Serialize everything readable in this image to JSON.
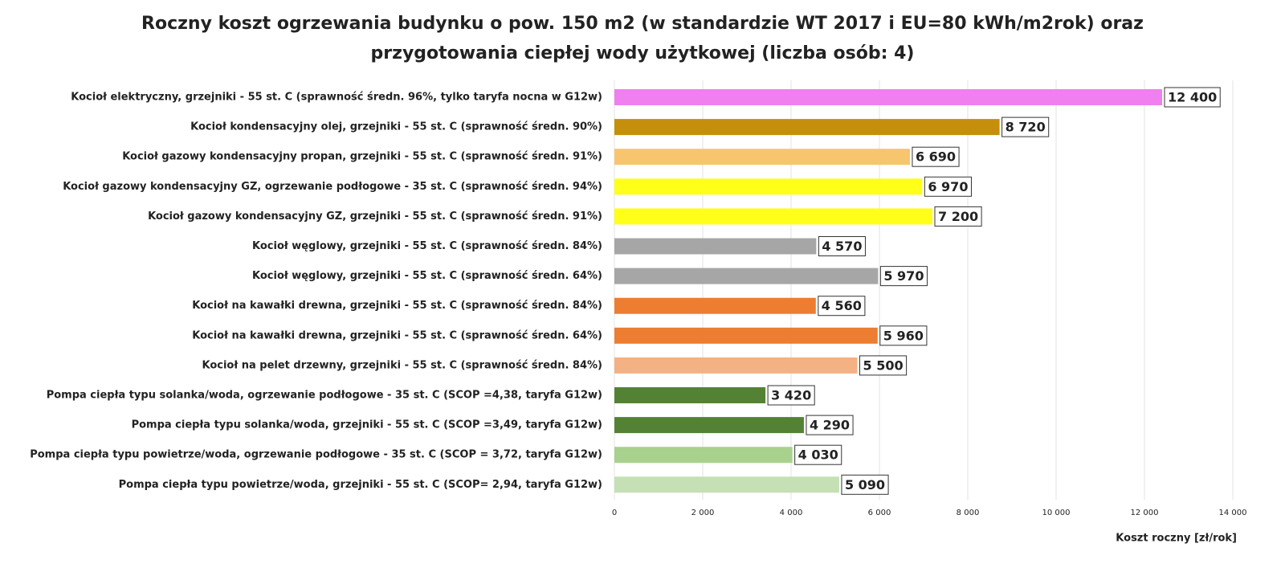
{
  "chart_data": {
    "type": "bar",
    "orientation": "horizontal",
    "title": [
      "Roczny koszt ogrzewania budynku  o pow. 150 m2 (w standardzie WT 2017 i EU=80 kWh/m2rok) oraz",
      "przygotowania ciepłej wody użytkowej (liczba osób: 4)"
    ],
    "x_label": "Koszt roczny [zł/rok]",
    "categories": [
      "Kocioł  elektryczny,  grzejniki - 55 st. C  (sprawność średn. 96%, tylko taryfa nocna w G12w)",
      "Kocioł  kondensacyjny olej,  grzejniki - 55 st. C (sprawność średn. 90%)",
      "Kocioł gazowy kondensacyjny propan, grzejniki - 55 st. C (sprawność średn. 91%)",
      "Kocioł gazowy kondensacyjny GZ, ogrzewanie podłogowe - 35 st. C (sprawność średn. 94%)",
      "Kocioł gazowy kondensacyjny GZ, grzejniki - 55 st. C (sprawność średn. 91%)",
      "Kocioł węglowy,  grzejniki - 55 st. C (sprawność średn. 84%)",
      "Kocioł węglowy,  grzejniki - 55 st. C (sprawność średn. 64%)",
      "Kocioł na kawałki drewna, grzejniki - 55 st. C (sprawność średn. 84%)",
      "Kocioł na kawałki drewna, grzejniki - 55 st. C (sprawność średn. 64%)",
      "Kocioł na pelet drzewny, grzejniki - 55 st. C (sprawność średn. 84%)",
      "Pompa ciepła typu solanka/woda, ogrzewanie podłogowe - 35 st. C (SCOP =4,38, taryfa G12w)",
      "Pompa ciepła typu solanka/woda, grzejniki - 55 st. C (SCOP =3,49, taryfa G12w)",
      "Pompa ciepła typu powietrze/woda, ogrzewanie podłogowe - 35 st. C (SCOP = 3,72, taryfa G12w)",
      "Pompa ciepła typu powietrze/woda, grzejniki - 55 st. C (SCOP= 2,94, taryfa G12w)"
    ],
    "values": [
      12400,
      8720,
      6690,
      6970,
      7200,
      4570,
      5970,
      4560,
      5960,
      5500,
      3420,
      4290,
      4030,
      5090
    ],
    "value_labels": [
      "12 400",
      "8 720",
      "6 690",
      "6 970",
      "7 200",
      "4 570",
      "5 970",
      "4 560",
      "5 960",
      "5 500",
      "3 420",
      "4 290",
      "4 030",
      "5 090"
    ],
    "colors": [
      "#f07ff0",
      "#c58f0c",
      "#f7c56e",
      "#ffff1a",
      "#ffff1a",
      "#a6a6a6",
      "#a6a6a6",
      "#ed7d31",
      "#ed7d31",
      "#f4b183",
      "#548235",
      "#548235",
      "#a9d18e",
      "#c5e0b4"
    ],
    "xlim": [
      0,
      14000
    ],
    "xticks": [
      0,
      {
        "value": 2000,
        "label": "2 000"
      },
      {
        "value": 4000,
        "label": "4 000"
      },
      {
        "value": 6000,
        "label": "6 000"
      },
      {
        "value": 8000,
        "label": "8 000"
      },
      {
        "value": 10000,
        "label": "10 000"
      },
      {
        "value": 12000,
        "label": "12 000"
      },
      {
        "value": 14000,
        "label": "14 000"
      }
    ],
    "grid": true
  }
}
